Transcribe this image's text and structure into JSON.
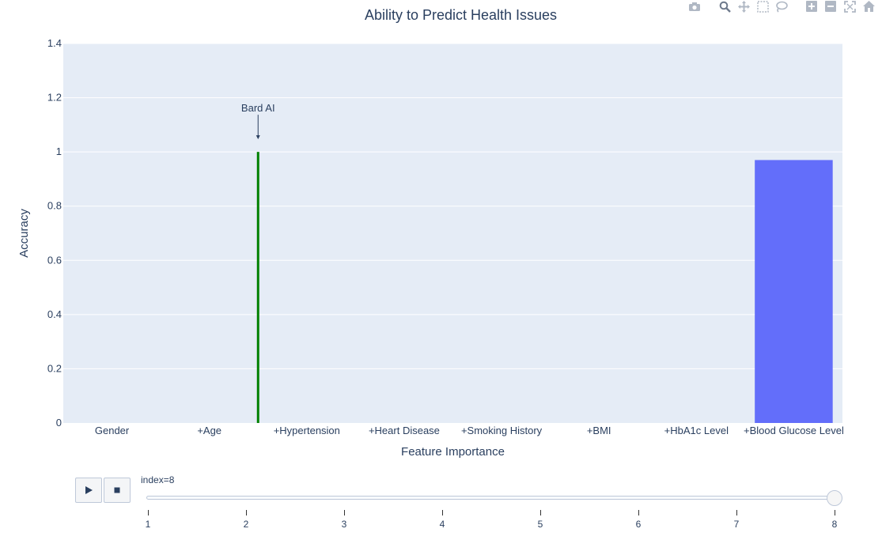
{
  "chart_data": {
    "type": "bar",
    "title": "Ability to Predict Health Issues",
    "xlabel": "Feature Importance",
    "ylabel": "Accuracy",
    "categories": [
      "Gender",
      "+Age",
      "+Hypertension",
      "+Heart Disease",
      "+Smoking History",
      "+BMI",
      "+HbA1c Level",
      "+Blood Glucose Level"
    ],
    "series": [
      {
        "values": [
          null,
          null,
          null,
          null,
          null,
          null,
          null,
          0.97
        ],
        "color": "#636efa"
      }
    ],
    "ylim": [
      0,
      1.4
    ],
    "yticks": [
      0,
      0.2,
      0.4,
      0.6,
      0.8,
      1,
      1.2,
      1.4
    ],
    "ytick_labels": [
      "0",
      "0.2",
      "0.4",
      "0.6",
      "0.8",
      "1",
      "1.2",
      "1.4"
    ],
    "grid": true,
    "reference_line": {
      "x_position": 1.5,
      "y_from": 0,
      "y_to": 1,
      "color": "#008000"
    },
    "annotation": {
      "text": "Bard AI",
      "x_position": 1.5,
      "y": 1,
      "arrow": true
    },
    "plot_background": "#e5ecf6"
  },
  "slider": {
    "current_label": "index=8",
    "ticks": [
      "1",
      "2",
      "3",
      "4",
      "5",
      "6",
      "7",
      "8"
    ],
    "active_index": 7
  },
  "modebar": {
    "icons": [
      "camera-icon",
      "zoom-icon",
      "pan-icon",
      "box-select-icon",
      "lasso-select-icon",
      "zoom-in-icon",
      "zoom-out-icon",
      "autoscale-icon",
      "reset-axes-icon"
    ]
  }
}
